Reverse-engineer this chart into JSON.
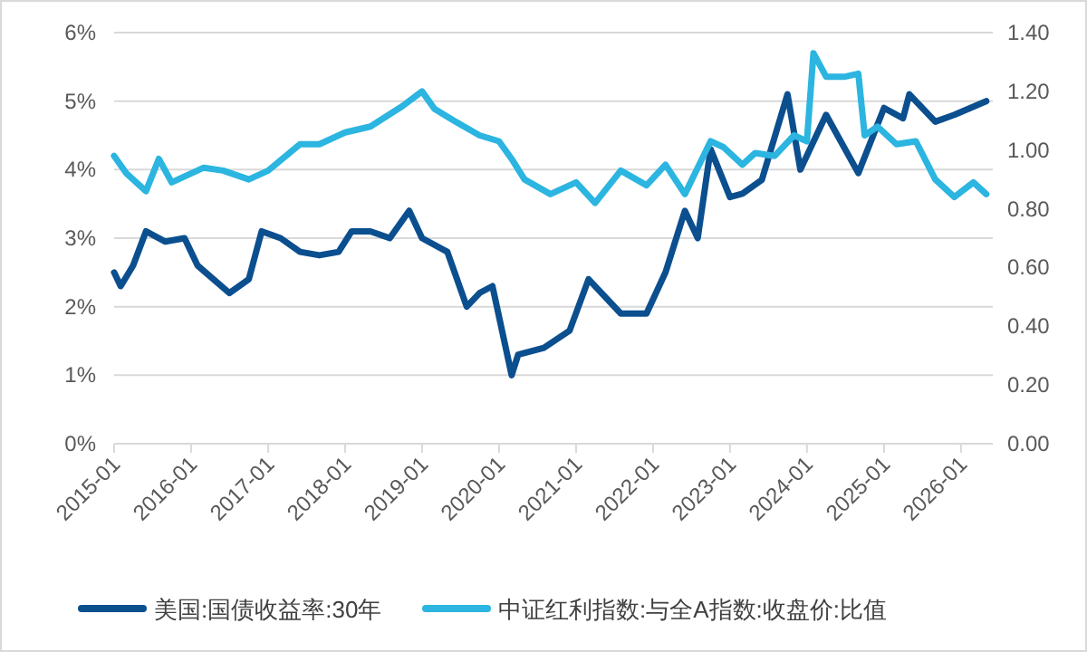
{
  "chart_data": {
    "type": "line",
    "xlim": [
      "2015-01",
      "2026-06"
    ],
    "xticks": [
      "2015-01",
      "2016-01",
      "2017-01",
      "2018-01",
      "2019-01",
      "2020-01",
      "2021-01",
      "2022-01",
      "2023-01",
      "2024-01",
      "2025-01",
      "2026-01"
    ],
    "ylim": [
      0,
      6
    ],
    "yticks": [
      {
        "value": 0,
        "label": "0%"
      },
      {
        "value": 1,
        "label": "1%"
      },
      {
        "value": 2,
        "label": "2%"
      },
      {
        "value": 3,
        "label": "3%"
      },
      {
        "value": 4,
        "label": "4%"
      },
      {
        "value": 5,
        "label": "5%"
      },
      {
        "value": 6,
        "label": "6%"
      }
    ],
    "y2lim": [
      0,
      1.4
    ],
    "y2ticks": [
      {
        "value": 0,
        "label": "0.00"
      },
      {
        "value": 0.2,
        "label": "0.20"
      },
      {
        "value": 0.4,
        "label": "0.40"
      },
      {
        "value": 0.6,
        "label": "0.60"
      },
      {
        "value": 0.8,
        "label": "0.80"
      },
      {
        "value": 1,
        "label": "1.00"
      },
      {
        "value": 1.2,
        "label": "1.20"
      },
      {
        "value": 1.4,
        "label": "1.40"
      }
    ],
    "grid": "y",
    "legend": "bottom",
    "marker": "none",
    "line_style": "solid",
    "series": [
      {
        "name": "美国:国债收益率:30年",
        "color": "#0b4f8f",
        "x": [
          "2015-01",
          "2015-02",
          "2015-04",
          "2015-06",
          "2015-09",
          "2015-12",
          "2016-02",
          "2016-07",
          "2016-10",
          "2016-12",
          "2017-03",
          "2017-06",
          "2017-09",
          "2017-12",
          "2018-02",
          "2018-05",
          "2018-08",
          "2018-11",
          "2019-01",
          "2019-05",
          "2019-08",
          "2019-10",
          "2019-12",
          "2020-03",
          "2020-04",
          "2020-08",
          "2020-12",
          "2021-03",
          "2021-08",
          "2021-12",
          "2022-03",
          "2022-06",
          "2022-08",
          "2022-10",
          "2023-01",
          "2023-03",
          "2023-06",
          "2023-10",
          "2023-12",
          "2024-04",
          "2024-09",
          "2025-01",
          "2025-04",
          "2025-05",
          "2025-09",
          "2025-12",
          "2026-05"
        ],
        "values": [
          2.5,
          2.3,
          2.6,
          3.1,
          2.95,
          3.0,
          2.6,
          2.2,
          2.4,
          3.1,
          3.0,
          2.8,
          2.75,
          2.8,
          3.1,
          3.1,
          3.0,
          3.4,
          3.0,
          2.8,
          2.0,
          2.2,
          2.3,
          1.0,
          1.3,
          1.4,
          1.65,
          2.4,
          1.9,
          1.9,
          2.5,
          3.4,
          3.0,
          4.3,
          3.6,
          3.65,
          3.85,
          5.1,
          4.0,
          4.8,
          3.95,
          4.9,
          4.75,
          5.1,
          4.7,
          4.8,
          5.0
        ]
      },
      {
        "name": "中证红利指数:与全A指数:收盘价:比值",
        "color": "#2bb5e0",
        "axis": "y2",
        "x": [
          "2015-01",
          "2015-03",
          "2015-06",
          "2015-08",
          "2015-10",
          "2016-03",
          "2016-06",
          "2016-10",
          "2017-01",
          "2017-06",
          "2017-09",
          "2018-01",
          "2018-05",
          "2018-10",
          "2019-01",
          "2019-03",
          "2019-06",
          "2019-10",
          "2020-01",
          "2020-03",
          "2020-05",
          "2020-09",
          "2021-01",
          "2021-04",
          "2021-08",
          "2021-12",
          "2022-03",
          "2022-06",
          "2022-10",
          "2022-12",
          "2023-03",
          "2023-05",
          "2023-08",
          "2023-11",
          "2024-01",
          "2024-02",
          "2024-04",
          "2024-07",
          "2024-09",
          "2024-10",
          "2024-12",
          "2025-03",
          "2025-06",
          "2025-09",
          "2025-12",
          "2026-03",
          "2026-05"
        ],
        "values": [
          0.98,
          0.92,
          0.86,
          0.97,
          0.89,
          0.94,
          0.93,
          0.9,
          0.93,
          1.02,
          1.02,
          1.06,
          1.08,
          1.15,
          1.2,
          1.14,
          1.1,
          1.05,
          1.03,
          0.97,
          0.9,
          0.85,
          0.89,
          0.82,
          0.93,
          0.88,
          0.95,
          0.85,
          1.03,
          1.01,
          0.95,
          0.99,
          0.98,
          1.05,
          1.03,
          1.33,
          1.25,
          1.25,
          1.26,
          1.05,
          1.08,
          1.02,
          1.03,
          0.9,
          0.84,
          0.89,
          0.85
        ]
      }
    ]
  }
}
